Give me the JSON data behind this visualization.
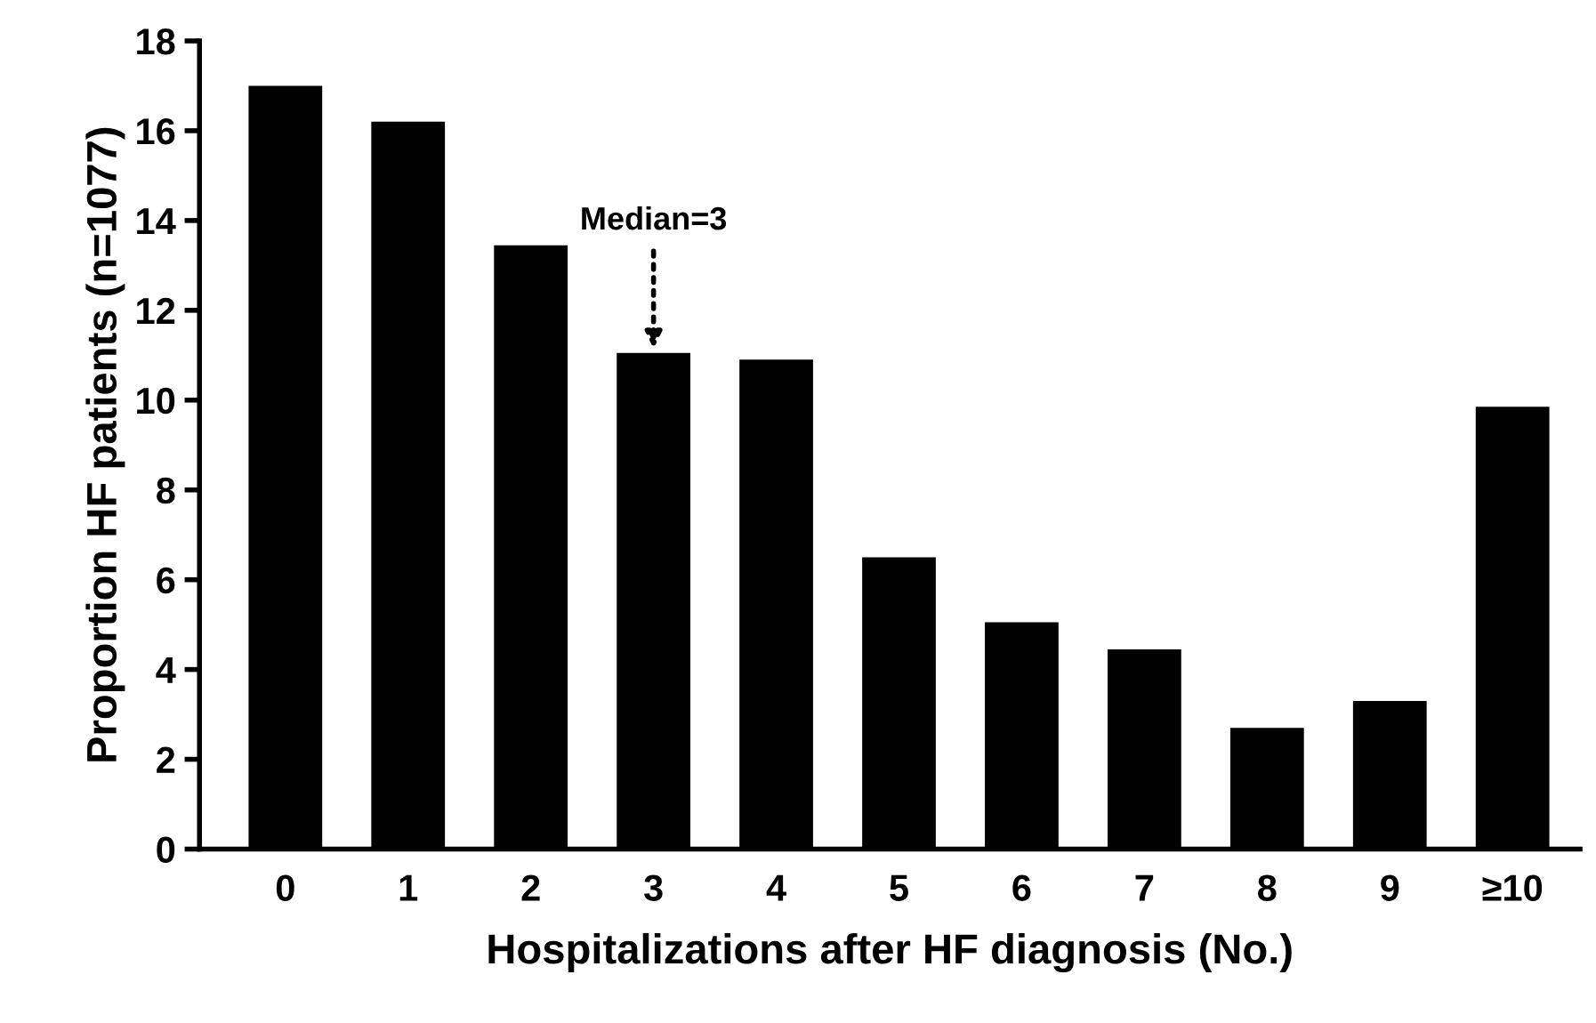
{
  "chart_data": {
    "type": "bar",
    "xlabel": "Hospitalizations after HF diagnosis (No.)",
    "ylabel": "Proportion HF patients (n=1077)",
    "categories": [
      "0",
      "1",
      "2",
      "3",
      "4",
      "5",
      "6",
      "7",
      "8",
      "9",
      "≥10"
    ],
    "values": [
      17.0,
      16.2,
      13.45,
      11.05,
      10.9,
      6.5,
      5.05,
      4.45,
      2.7,
      3.3,
      9.85
    ],
    "color": "#000000",
    "ylim": [
      0,
      18
    ],
    "yticks": [
      0,
      2,
      4,
      6,
      8,
      10,
      12,
      14,
      16,
      18
    ],
    "grid": false,
    "annotations": [
      {
        "text": "Median=3",
        "x": "3",
        "y": 11.05
      }
    ]
  }
}
